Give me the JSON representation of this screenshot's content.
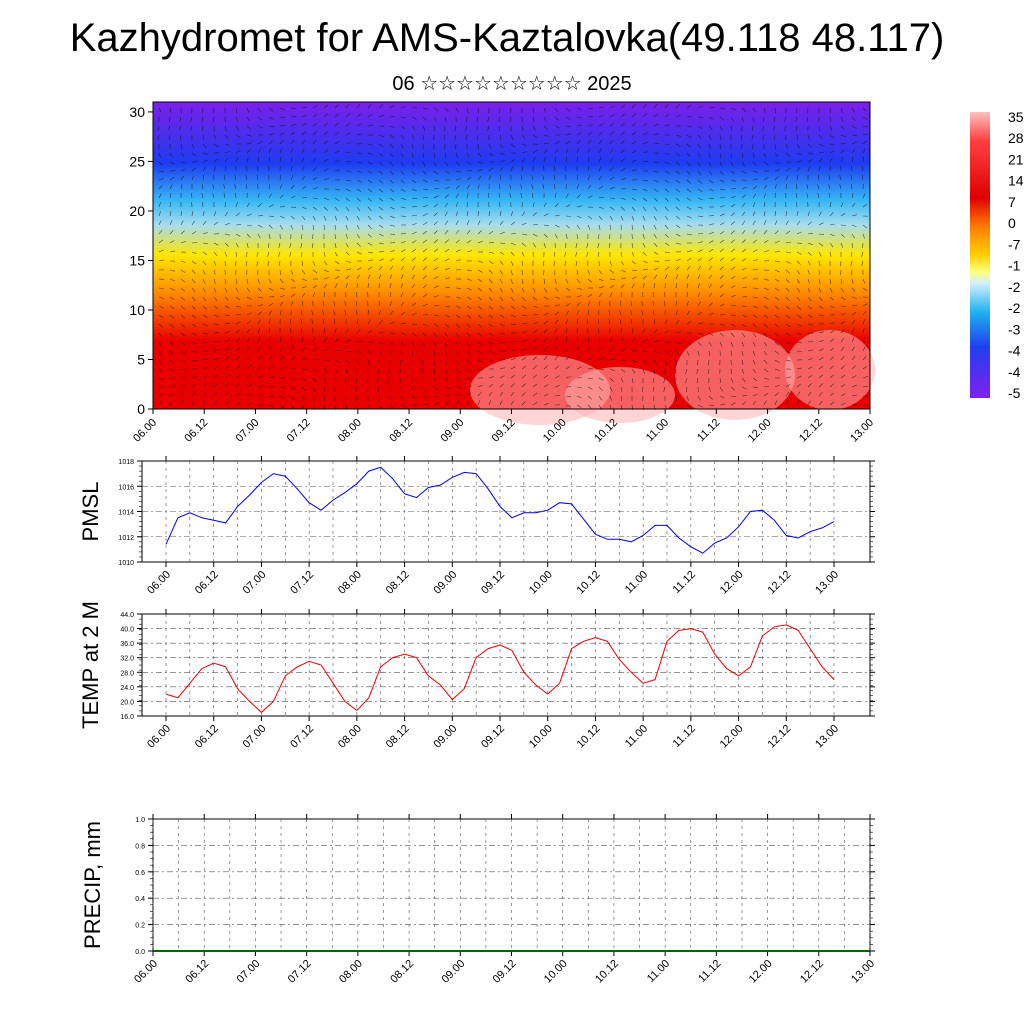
{
  "title": "Kazhydromet for AMS-Kaztalovka(49.118 48.117)",
  "subtitle": "06 ☆☆☆☆☆☆☆☆☆ 2025",
  "chart_data": [
    {
      "type": "heatmap",
      "name": "upper-air-section",
      "x_tick_labels": [
        "06.00",
        "06.12",
        "07.00",
        "07.12",
        "08.00",
        "08.12",
        "09.00",
        "09.12",
        "10.00",
        "10.12",
        "11.00",
        "11.12",
        "12.00",
        "12.12",
        "13.00"
      ],
      "y_tick_labels": [
        "0",
        "5",
        "10",
        "15",
        "20",
        "25",
        "30"
      ],
      "ylim": [
        0,
        31
      ],
      "colorbar_labels": [
        "35",
        "28",
        "21",
        "14",
        "7",
        "0",
        "-7",
        "-1",
        "-2",
        "-2",
        "-3",
        "-4",
        "-4",
        "-5"
      ],
      "temperature_bands": [
        {
          "y": 0,
          "value": 32
        },
        {
          "y": 5,
          "value": 22
        },
        {
          "y": 10,
          "value": 10
        },
        {
          "y": 15,
          "value": -8
        },
        {
          "y": 20,
          "value": -28
        },
        {
          "y": 25,
          "value": -50
        },
        {
          "y": 31,
          "value": -56
        }
      ],
      "colors": {
        "hot": "#e80000",
        "warm": "#ff8c00",
        "mild": "#ffe600",
        "cool": "#36b7f5",
        "cold": "#1f3cf0",
        "coldest": "#7a1fe8"
      }
    },
    {
      "type": "line",
      "name": "pmsl",
      "ylabel": "PMSL",
      "x_tick_labels": [
        "06.00",
        "06.12",
        "07.00",
        "07.12",
        "08.00",
        "08.12",
        "09.00",
        "09.12",
        "10.00",
        "10.12",
        "11.00",
        "11.12",
        "12.00",
        "12.12",
        "13.00"
      ],
      "y_tick_labels": [
        "1010",
        "1012",
        "1014",
        "1016",
        "1018"
      ],
      "ylim": [
        1010,
        1018
      ],
      "color": "#0000ee",
      "values": [
        1011.4,
        1013.5,
        1013.9,
        1013.5,
        1013.3,
        1013.1,
        1014.4,
        1015.3,
        1016.3,
        1017.0,
        1016.8,
        1015.8,
        1014.7,
        1014.1,
        1014.9,
        1015.5,
        1016.2,
        1017.2,
        1017.5,
        1016.6,
        1015.4,
        1015.1,
        1015.9,
        1016.1,
        1016.7,
        1017.1,
        1017.0,
        1015.8,
        1014.4,
        1013.5,
        1013.9,
        1013.9,
        1014.1,
        1014.7,
        1014.6,
        1013.4,
        1012.2,
        1011.8,
        1011.8,
        1011.6,
        1012.1,
        1012.9,
        1012.9,
        1011.9,
        1011.2,
        1010.7,
        1011.5,
        1011.9,
        1012.8,
        1014.0,
        1014.1,
        1013.3,
        1012.1,
        1011.9,
        1012.4,
        1012.7,
        1013.2
      ]
    },
    {
      "type": "line",
      "name": "temp-2m",
      "ylabel": "TEMP at 2 M",
      "x_tick_labels": [
        "06.00",
        "06.12",
        "07.00",
        "07.12",
        "08.00",
        "08.12",
        "09.00",
        "09.12",
        "10.00",
        "10.12",
        "11.00",
        "11.12",
        "12.00",
        "12.12",
        "13.00"
      ],
      "y_tick_labels": [
        "16.0",
        "20.0",
        "24.0",
        "28.0",
        "32.0",
        "36.0",
        "40.0",
        "44.0"
      ],
      "ylim": [
        16,
        44
      ],
      "color": "#ee0000",
      "values": [
        22.0,
        21.0,
        25.0,
        29.0,
        30.5,
        29.5,
        23.5,
        20.0,
        17.0,
        20.0,
        27.0,
        29.5,
        31.0,
        30.0,
        25.0,
        20.0,
        17.5,
        21.0,
        29.5,
        32.0,
        33.0,
        32.0,
        27.0,
        24.5,
        20.5,
        23.5,
        32.0,
        34.5,
        35.5,
        34.0,
        28.0,
        24.5,
        22.0,
        25.0,
        34.5,
        36.5,
        37.5,
        36.5,
        31.5,
        28.0,
        25.0,
        26.0,
        36.5,
        39.5,
        40.0,
        39.0,
        33.0,
        29.0,
        27.0,
        29.5,
        38.0,
        40.5,
        41.0,
        39.5,
        34.5,
        29.5,
        26.0
      ]
    },
    {
      "type": "bar",
      "name": "precip",
      "ylabel": "PRECIP, mm",
      "x_tick_labels": [
        "06.00",
        "06.12",
        "07.00",
        "07.12",
        "08.00",
        "08.12",
        "09.00",
        "09.12",
        "10.00",
        "10.12",
        "11.00",
        "11.12",
        "12.00",
        "12.12",
        "13.00"
      ],
      "y_tick_labels": [
        "0.0",
        "0.2",
        "0.4",
        "0.6",
        "0.8",
        "1.0"
      ],
      "ylim": [
        0,
        1
      ],
      "color": "#006400",
      "values": []
    }
  ]
}
